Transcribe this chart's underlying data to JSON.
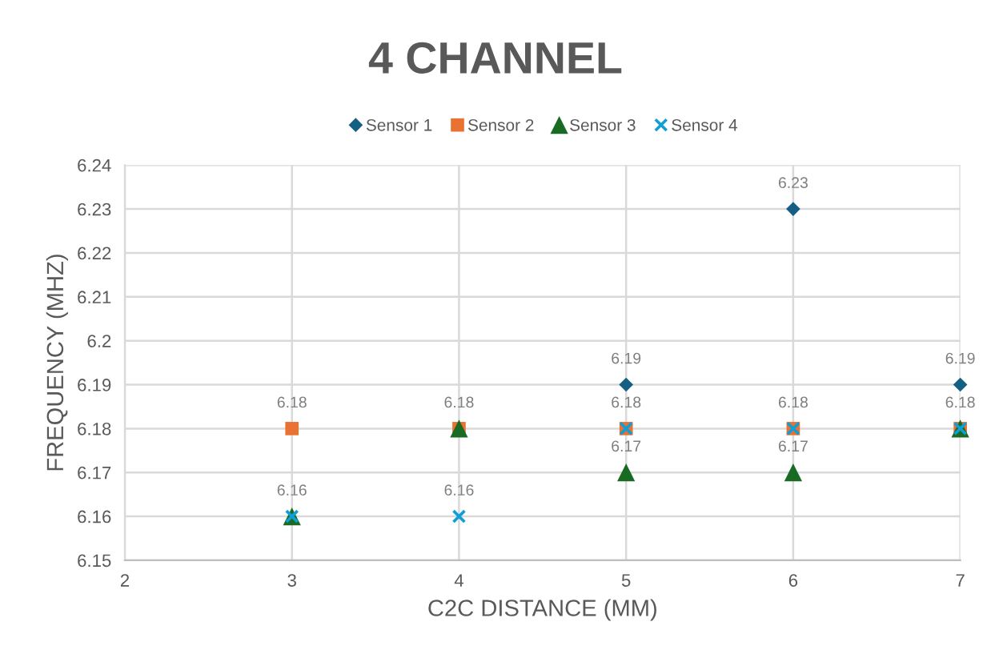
{
  "chart_data": {
    "type": "scatter",
    "title": "4 CHANNEL",
    "xlabel": "C2C DISTANCE (MM)",
    "ylabel": "FREQUENCY (MHZ)",
    "x": [
      3,
      4,
      5,
      6,
      7
    ],
    "series": [
      {
        "name": "Sensor 1",
        "color": "#156082",
        "marker": "diamond",
        "x": [
          5,
          6,
          7
        ],
        "values": [
          6.19,
          6.23,
          6.19
        ],
        "value_labels": [
          "6.19",
          "6.23",
          "6.19"
        ]
      },
      {
        "name": "Sensor 2",
        "color": "#e97132",
        "marker": "square",
        "values": [
          6.18,
          6.18,
          6.18,
          6.18,
          6.18
        ],
        "value_labels": [
          "6.18",
          "6.18",
          "6.18",
          "6.18",
          "6.18"
        ]
      },
      {
        "name": "Sensor 3",
        "color": "#196b24",
        "marker": "triangle",
        "values": [
          6.16,
          6.18,
          6.17,
          6.17,
          6.18
        ],
        "value_labels": [
          null,
          null,
          "6.17",
          "6.17",
          null
        ]
      },
      {
        "name": "Sensor 4",
        "color": "#0f9ed5",
        "marker": "cross",
        "values": [
          6.16,
          6.16,
          6.18,
          6.18,
          6.18
        ],
        "value_labels": [
          "6.16",
          "6.16",
          null,
          null,
          null
        ]
      }
    ],
    "xlim": [
      2,
      7
    ],
    "xticks": [
      2,
      3,
      4,
      5,
      6,
      7
    ],
    "ylim": [
      6.15,
      6.24
    ],
    "yticks": [
      6.15,
      6.16,
      6.17,
      6.18,
      6.19,
      6.2,
      6.21,
      6.22,
      6.23,
      6.24
    ],
    "grid": true,
    "legend": "top"
  }
}
